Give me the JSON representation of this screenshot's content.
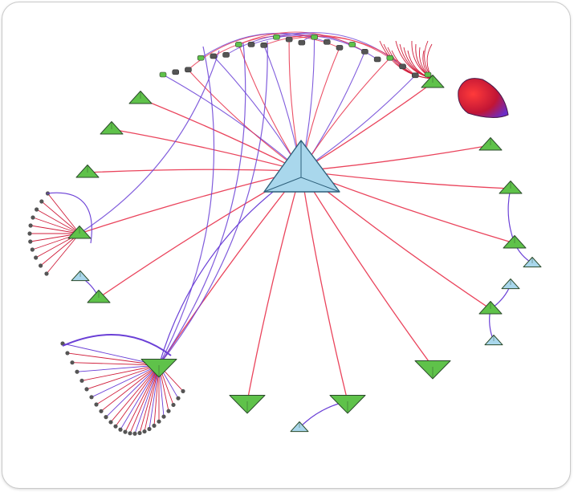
{
  "diagram": {
    "type": "network-graph",
    "edge_gradient": [
      "#e8304a",
      "#5a3ce0"
    ],
    "colors": {
      "hub_node": "#a9d7ec",
      "green_node": "#5fc24a",
      "blue_node": "#a9d7ec",
      "leaf_node": "#555555",
      "red_edge": "#e8304a",
      "purple_edge": "#6a3fd6",
      "dense_cluster": "#d01f3c"
    }
  }
}
